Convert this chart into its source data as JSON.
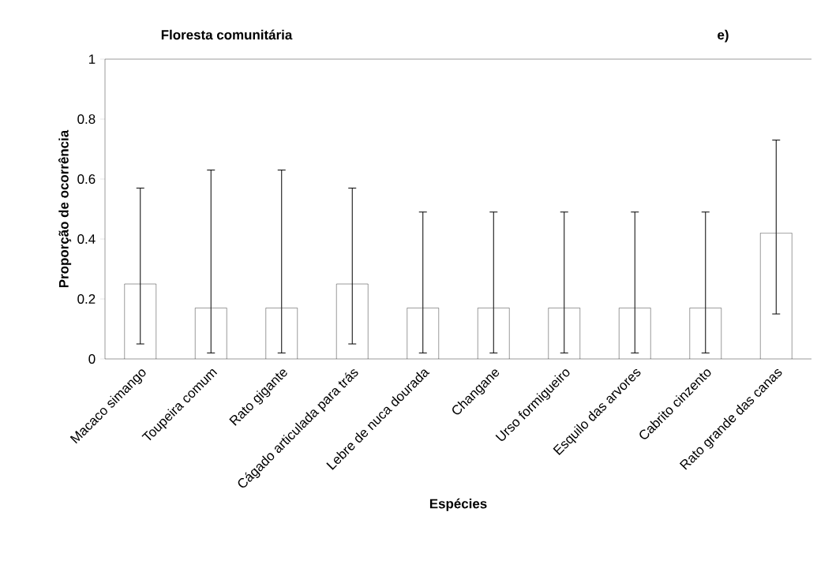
{
  "chart_data": {
    "type": "bar",
    "title": "Floresta comunitária",
    "annotations": [
      "e)"
    ],
    "xlabel": "Espécies",
    "ylabel": "Proporção de ocorrência",
    "categories": [
      "Macaco simango",
      "Toupeira comum",
      "Rato gigante",
      "Cágado articulada para trás",
      "Lebre de nuca dourada",
      "Changane",
      "Urso formigueiro",
      "Esquilo das arvores",
      "Cabrito cinzento",
      "Rato grande das canas"
    ],
    "values": [
      0.25,
      0.17,
      0.17,
      0.25,
      0.17,
      0.17,
      0.17,
      0.17,
      0.17,
      0.42
    ],
    "errors": [
      [
        0.05,
        0.57
      ],
      [
        0.02,
        0.63
      ],
      [
        0.02,
        0.63
      ],
      [
        0.05,
        0.57
      ],
      [
        0.02,
        0.49
      ],
      [
        0.02,
        0.49
      ],
      [
        0.02,
        0.49
      ],
      [
        0.02,
        0.49
      ],
      [
        0.02,
        0.49
      ],
      [
        0.15,
        0.73
      ]
    ],
    "color": "#ffffff",
    "ylim": [
      0,
      1
    ],
    "yticks": [
      0,
      0.2,
      0.4,
      0.6,
      0.8,
      1
    ],
    "grid": false
  }
}
